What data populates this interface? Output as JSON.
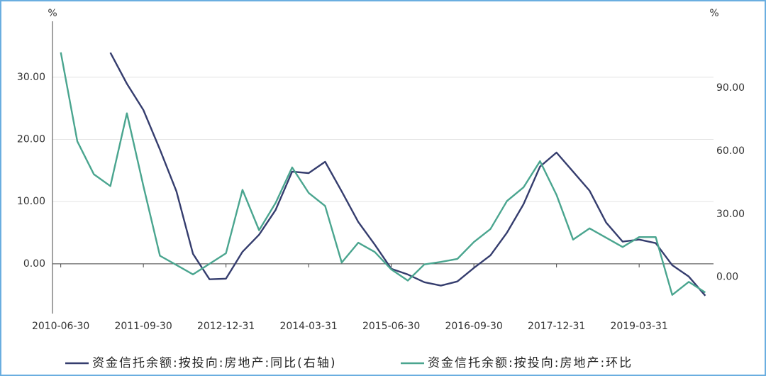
{
  "chart_data": {
    "type": "line",
    "y_unit": "%",
    "y2_unit": "%",
    "categories": [
      "2010-06-30",
      null,
      null,
      null,
      null,
      "2011-09-30",
      null,
      null,
      null,
      null,
      "2012-12-31",
      null,
      null,
      null,
      null,
      "2014-03-31",
      null,
      null,
      null,
      null,
      "2015-06-30",
      null,
      null,
      null,
      null,
      "2016-09-30",
      null,
      null,
      null,
      null,
      "2017-12-31",
      null,
      null,
      null,
      null,
      "2019-03-31",
      null,
      null,
      null,
      null
    ],
    "series": [
      {
        "name": "资金信托余额:按投向:房地产:同比(右轴)",
        "color": "#353d6e",
        "axis": "y2",
        "values": [
          null,
          null,
          null,
          106.8,
          92.0,
          79.5,
          60.7,
          40.8,
          11.1,
          -1.0,
          -0.7,
          12.1,
          20.2,
          32.0,
          50.2,
          49.5,
          54.9,
          40.8,
          26.3,
          15.5,
          4.0,
          1.3,
          -2.4,
          -4.0,
          -2.0,
          4.4,
          10.4,
          21.2,
          34.7,
          52.6,
          59.3,
          50.2,
          41.1,
          26.0,
          16.9,
          17.9,
          16.2,
          5.7,
          0.3,
          -8.8
        ]
      },
      {
        "name": "资金信托余额:按投向:房地产:环比",
        "color": "#4aa58f",
        "values": [
          34.0,
          19.7,
          14.4,
          12.5,
          24.2,
          12.5,
          1.3,
          -0.2,
          -1.7,
          0.0,
          1.7,
          11.9,
          5.4,
          9.8,
          15.5,
          11.4,
          9.3,
          0.2,
          3.4,
          1.9,
          -0.9,
          -2.7,
          -0.1,
          0.3,
          0.8,
          3.5,
          5.6,
          10.1,
          12.3,
          16.5,
          11.1,
          3.9,
          5.7,
          4.2,
          2.7,
          4.3,
          4.3,
          -5.0,
          -2.9,
          -4.6
        ]
      }
    ],
    "ylim": [
      -8,
      39
    ],
    "yticks": [
      {
        "value": 0,
        "label": "0.00"
      },
      {
        "value": 10,
        "label": "10.00"
      },
      {
        "value": 20,
        "label": "20.00"
      },
      {
        "value": 30,
        "label": "30.00"
      }
    ],
    "y2lim": [
      -17.3,
      121.7
    ],
    "y2ticks": [
      {
        "value": 0,
        "label": "0.00"
      },
      {
        "value": 30,
        "label": "30.00"
      },
      {
        "value": 60,
        "label": "60.00"
      },
      {
        "value": 90,
        "label": "90.00"
      }
    ],
    "grid": true,
    "legend": "bottom"
  }
}
